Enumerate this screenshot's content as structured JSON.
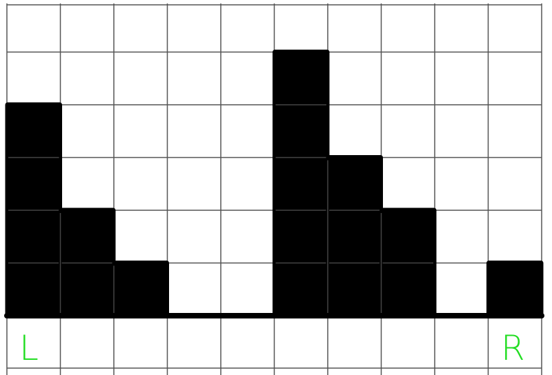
{
  "diagram": {
    "grid": {
      "columns": 10,
      "rows": 7
    },
    "heights": [
      4,
      2,
      1,
      0,
      0,
      5,
      3,
      2,
      0,
      1
    ],
    "left_label": "L",
    "right_label": "R",
    "colors": {
      "bars": "#000000",
      "grid_lines": "#555555",
      "labels": "#22dd22",
      "background": "#ffffff"
    }
  }
}
